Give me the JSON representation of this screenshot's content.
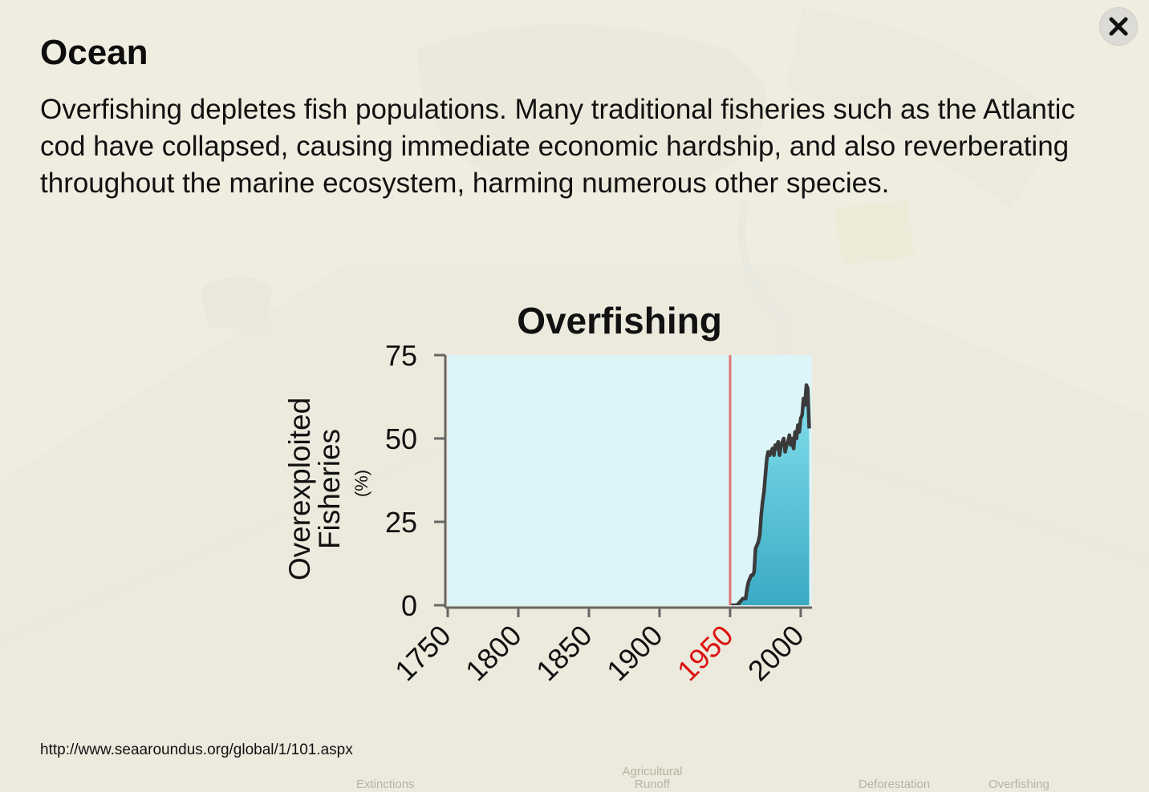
{
  "modal": {
    "title": "Ocean",
    "description": "Overfishing depletes fish populations. Many traditional fisheries such as the Atlantic cod have collapsed, causing immediate economic hardship, and also reverberating throughout the marine ecosystem, harming numerous other species.",
    "close_icon": "close-icon",
    "source_url": "http://www.seaaroundus.org/global/1/101.aspx"
  },
  "background_labels": {
    "extinctions": "Extinctions",
    "agricultural_runoff": "Agricultural Runoff",
    "deforestation": "Deforestation",
    "overfishing": "Overfishing"
  },
  "chart_data": {
    "type": "area",
    "title": "Overfishing",
    "ylabel": "Overexploited Fisheries",
    "ylabel_unit": "(%)",
    "xlabel": "",
    "xlim": [
      1750,
      2008
    ],
    "ylim": [
      0,
      75
    ],
    "yticks": [
      0,
      25,
      50,
      75
    ],
    "xticks": [
      1750,
      1800,
      1850,
      1900,
      1950,
      2000
    ],
    "highlight_x": 1950,
    "colors": {
      "plot_background": "#ddf4f8",
      "highlight_line": "#e07474",
      "highlight_label": "#dd1111",
      "area_top": "#86e1ee",
      "area_bottom": "#3aaac3",
      "line": "#3a3a3a",
      "axis": "#666666"
    },
    "x": [
      1950,
      1955,
      1957,
      1959,
      1961,
      1962,
      1963,
      1965,
      1966,
      1967,
      1968,
      1969,
      1970,
      1971,
      1972,
      1973,
      1974,
      1975,
      1976,
      1977,
      1978,
      1979,
      1980,
      1981,
      1982,
      1983,
      1984,
      1985,
      1986,
      1987,
      1988,
      1989,
      1990,
      1991,
      1992,
      1993,
      1994,
      1995,
      1996,
      1997,
      1998,
      1999,
      2000,
      2001,
      2002,
      2003,
      2004,
      2005,
      2006
    ],
    "y": [
      0,
      0,
      1,
      2,
      2,
      5,
      7,
      9,
      9,
      10,
      17,
      18,
      19,
      21,
      27,
      31,
      34,
      39,
      44,
      46,
      45,
      46,
      47,
      45,
      48,
      47,
      49,
      45,
      48,
      49,
      50,
      46,
      48,
      49,
      51,
      48,
      50,
      47,
      52,
      50,
      54,
      52,
      56,
      57,
      62,
      60,
      66,
      65,
      53
    ]
  }
}
